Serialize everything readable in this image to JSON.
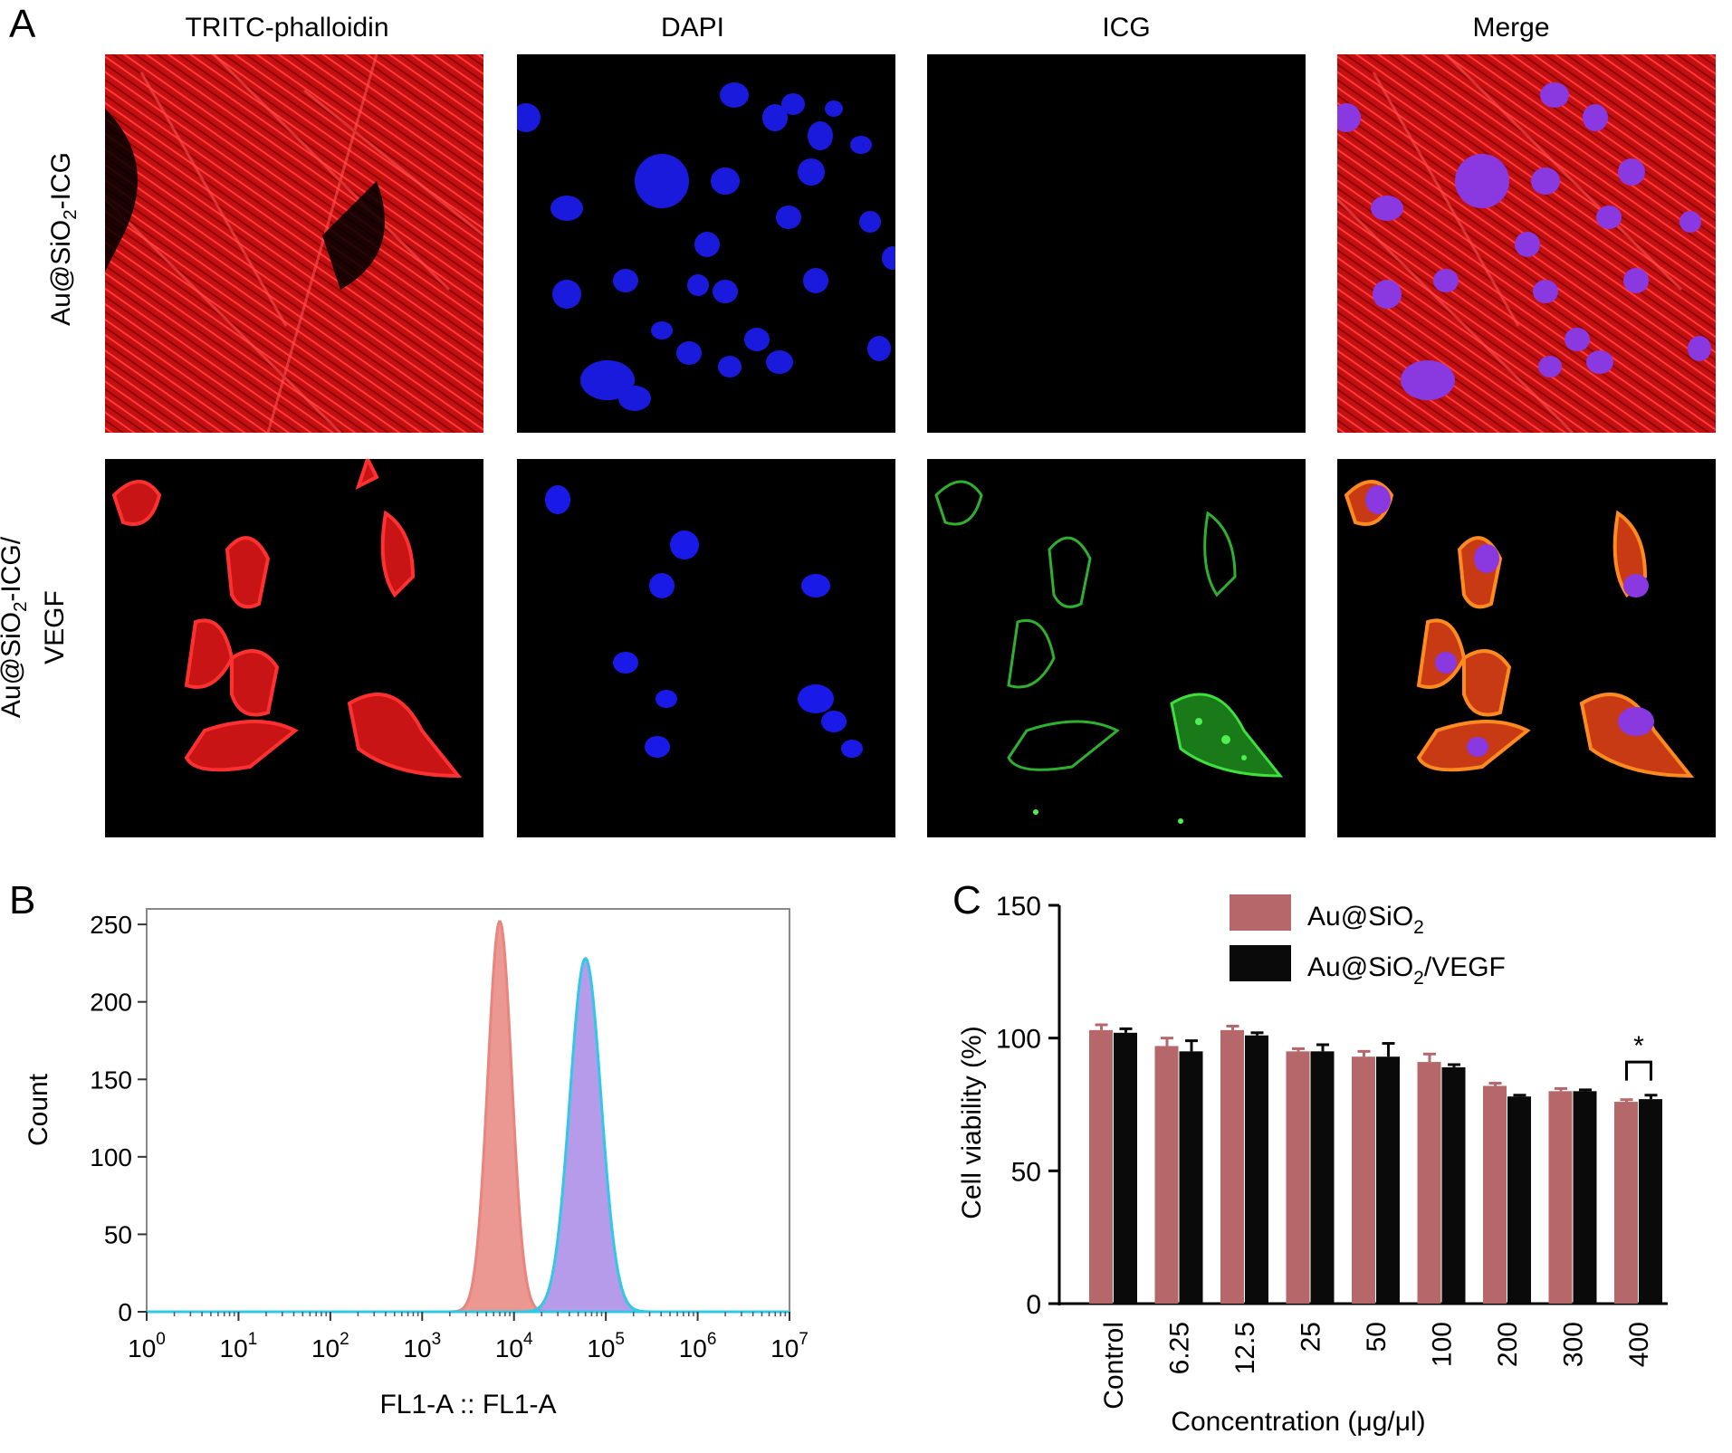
{
  "panel_a": {
    "letter": "A",
    "columns": [
      "TRITC-phalloidin",
      "DAPI",
      "ICG",
      "Merge"
    ],
    "rows": [
      {
        "label_main": "Au@SiO",
        "label_sub": "2",
        "label_tail": "-ICG"
      },
      {
        "label_main": "Au@SiO",
        "label_sub": "2",
        "label_tail": "-ICG/",
        "label_line2": "VEGF"
      }
    ]
  },
  "panel_b": {
    "letter": "B",
    "xlabel": "FL1-A :: FL1-A",
    "ylabel": "Count"
  },
  "panel_c": {
    "letter": "C",
    "xlabel": "Concentration (μg/μl)",
    "ylabel": "Cell viability (%)",
    "significance_mark": "*"
  },
  "chart_data": [
    {
      "type": "area",
      "panel": "B",
      "xlabel": "FL1-A :: FL1-A",
      "ylabel": "Count",
      "xscale": "log",
      "xlim": [
        1,
        10000000
      ],
      "ylim": [
        0,
        260
      ],
      "x_ticks": [
        {
          "base": "10",
          "exp": "0"
        },
        {
          "base": "10",
          "exp": "1"
        },
        {
          "base": "10",
          "exp": "2"
        },
        {
          "base": "10",
          "exp": "3"
        },
        {
          "base": "10",
          "exp": "4"
        },
        {
          "base": "10",
          "exp": "5"
        },
        {
          "base": "10",
          "exp": "6"
        },
        {
          "base": "10",
          "exp": "7"
        }
      ],
      "y_ticks": [
        "0",
        "50",
        "100",
        "150",
        "200",
        "250"
      ],
      "series": [
        {
          "color": "#e8857f",
          "peak_x": 7000,
          "peak_y": 252,
          "log_width": 0.13
        },
        {
          "color": "#a98ae6",
          "edge_color": "#2fc9e6",
          "peak_x": 60000,
          "peak_y": 228,
          "log_width": 0.17
        }
      ]
    },
    {
      "type": "bar",
      "panel": "C",
      "xlabel": "Concentration (μg/μl)",
      "ylabel": "Cell viability (%)",
      "ylim": [
        0,
        150
      ],
      "y_ticks": [
        "0",
        "50",
        "100",
        "150"
      ],
      "categories": [
        "Control",
        "6.25",
        "12.5",
        "25",
        "50",
        "100",
        "200",
        "300",
        "400"
      ],
      "series": [
        {
          "name": "Au@SiO2",
          "legend_main": "Au@SiO",
          "legend_sub": "2",
          "legend_tail": "",
          "color": "#b5676a",
          "values": [
            103,
            97,
            103,
            95,
            93,
            91,
            82,
            80,
            76
          ],
          "errors": [
            2,
            3,
            1.5,
            1,
            2,
            3,
            1,
            1,
            0.8
          ]
        },
        {
          "name": "Au@SiO2/VEGF",
          "legend_main": "Au@SiO",
          "legend_sub": "2",
          "legend_tail": "/VEGF",
          "color": "#0a0a0a",
          "values": [
            102,
            95,
            101,
            95,
            93,
            89,
            78,
            80,
            77
          ],
          "errors": [
            1.5,
            4,
            1,
            2.5,
            5,
            1,
            0.5,
            0.5,
            1.5
          ]
        }
      ]
    }
  ]
}
